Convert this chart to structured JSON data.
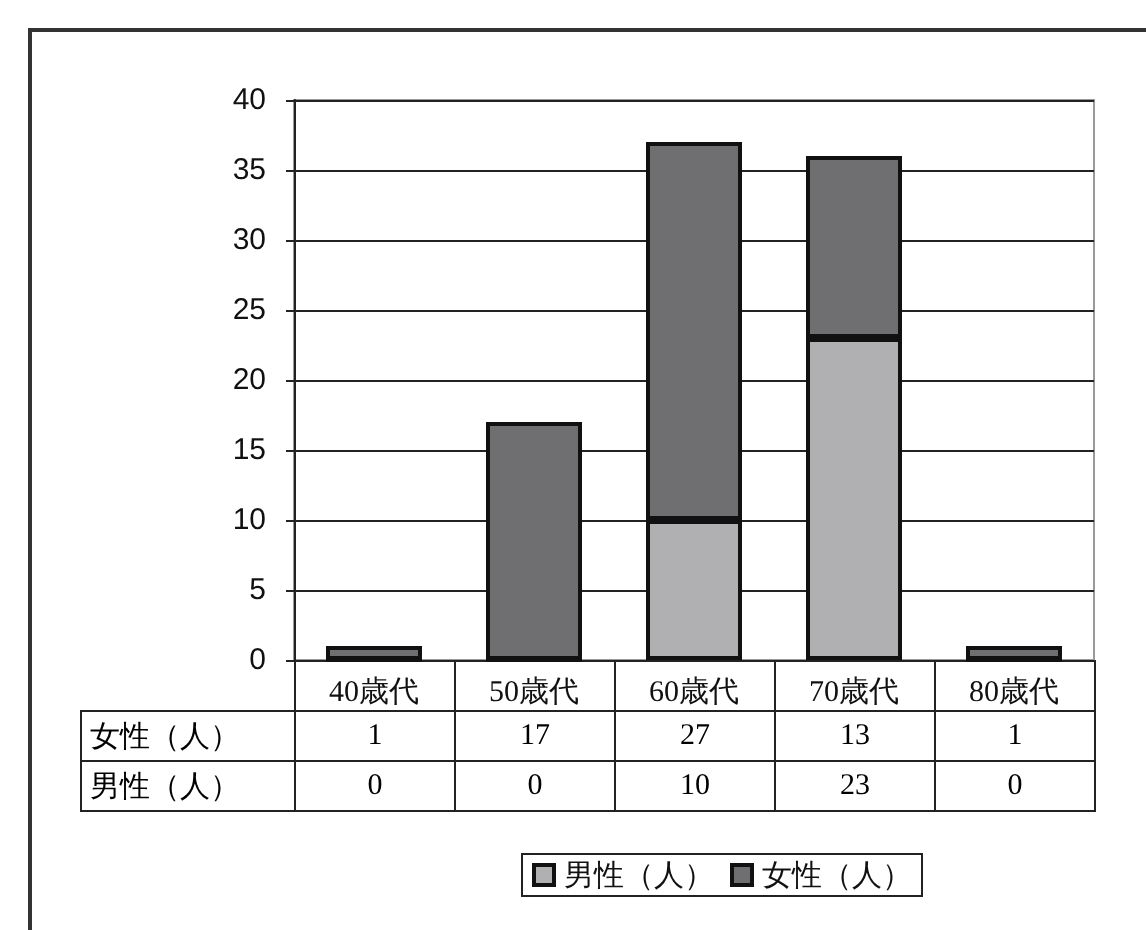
{
  "chart_data": {
    "type": "bar",
    "stacked": true,
    "categories": [
      "40歳代",
      "50歳代",
      "60歳代",
      "70歳代",
      "80歳代"
    ],
    "series": [
      {
        "name": "男性（人）",
        "color": "#b0b0b2",
        "values": [
          0,
          0,
          10,
          23,
          0
        ]
      },
      {
        "name": "女性（人）",
        "color": "#6f6f72",
        "values": [
          1,
          17,
          27,
          13,
          1
        ]
      }
    ],
    "ylim": [
      0,
      40
    ],
    "yticks": [
      0,
      5,
      10,
      15,
      20,
      25,
      30,
      35,
      40
    ],
    "grid": "y",
    "legend": "bottom",
    "data_labels": true
  }
}
